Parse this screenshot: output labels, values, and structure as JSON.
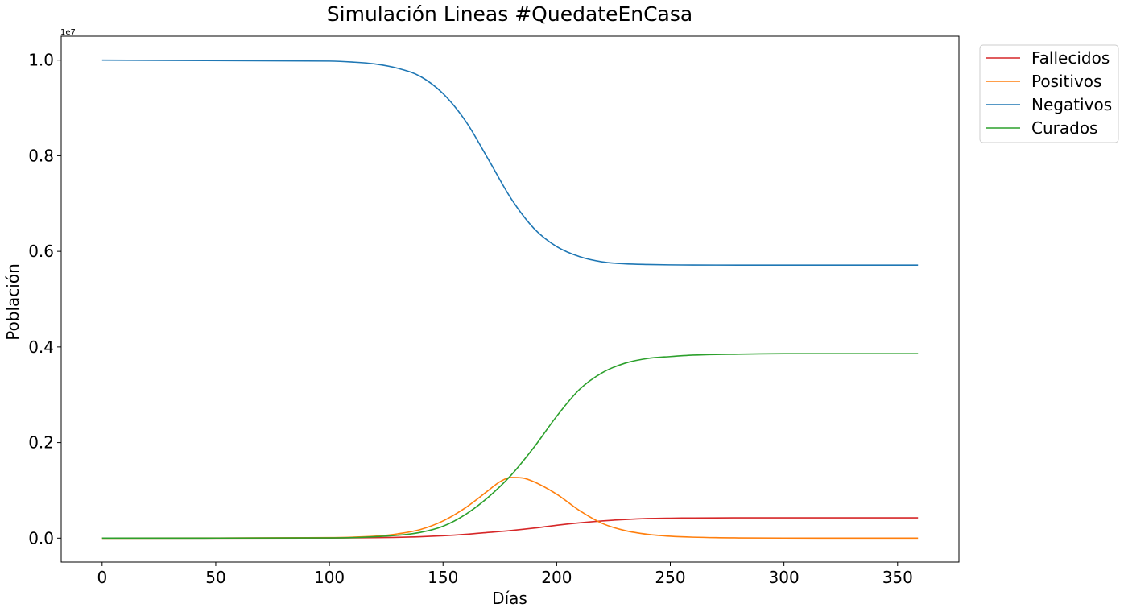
{
  "chart_data": {
    "type": "line",
    "title": "Simulación Lineas #QuedateEnCasa",
    "xlabel": "Días",
    "ylabel": "Población",
    "y_offset_label": "1e7",
    "xlim": [
      -18,
      377
    ],
    "ylim": [
      -0.05,
      1.05
    ],
    "x_ticks": [
      0,
      50,
      100,
      150,
      200,
      250,
      300,
      350
    ],
    "x_tick_labels": [
      "0",
      "50",
      "100",
      "150",
      "200",
      "250",
      "300",
      "350"
    ],
    "y_ticks": [
      0.0,
      0.2,
      0.4,
      0.6,
      0.8,
      1.0
    ],
    "y_tick_labels": [
      "0.0",
      "0.2",
      "0.4",
      "0.6",
      "0.8",
      "1.0"
    ],
    "grid": false,
    "legend_position": "outside-top-right",
    "series": [
      {
        "name": "Fallecidos",
        "color": "#d62728",
        "x": [
          0,
          100,
          120,
          140,
          150,
          160,
          170,
          180,
          190,
          200,
          210,
          220,
          230,
          240,
          250,
          260,
          280,
          300,
          359
        ],
        "y": [
          0,
          0.0003,
          0.001,
          0.003,
          0.005,
          0.008,
          0.012,
          0.016,
          0.021,
          0.027,
          0.032,
          0.036,
          0.039,
          0.041,
          0.0418,
          0.0422,
          0.0425,
          0.0426,
          0.0426
        ]
      },
      {
        "name": "Positivos",
        "color": "#ff7f0e",
        "x": [
          0,
          100,
          110,
          120,
          130,
          140,
          150,
          160,
          170,
          175,
          180,
          185,
          190,
          200,
          210,
          220,
          230,
          240,
          250,
          260,
          280,
          300,
          359
        ],
        "y": [
          0,
          0.001,
          0.002,
          0.004,
          0.009,
          0.018,
          0.036,
          0.064,
          0.1,
          0.118,
          0.127,
          0.126,
          0.118,
          0.092,
          0.058,
          0.031,
          0.016,
          0.008,
          0.004,
          0.002,
          0.0005,
          0.0001,
          0
        ]
      },
      {
        "name": "Negativos",
        "color": "#1f77b4",
        "x": [
          0,
          100,
          110,
          120,
          130,
          140,
          150,
          160,
          170,
          180,
          190,
          200,
          210,
          220,
          230,
          240,
          250,
          260,
          280,
          300,
          359
        ],
        "y": [
          1.0,
          0.998,
          0.996,
          0.992,
          0.983,
          0.966,
          0.93,
          0.872,
          0.792,
          0.71,
          0.648,
          0.61,
          0.589,
          0.578,
          0.574,
          0.5725,
          0.5718,
          0.5715,
          0.5713,
          0.5713,
          0.5713
        ]
      },
      {
        "name": "Curados",
        "color": "#2ca02c",
        "x": [
          0,
          100,
          110,
          120,
          130,
          140,
          150,
          160,
          170,
          180,
          190,
          200,
          210,
          220,
          230,
          240,
          250,
          260,
          280,
          300,
          359
        ],
        "y": [
          0,
          0.0005,
          0.001,
          0.003,
          0.006,
          0.012,
          0.025,
          0.05,
          0.086,
          0.132,
          0.19,
          0.255,
          0.311,
          0.346,
          0.366,
          0.376,
          0.38,
          0.383,
          0.385,
          0.386,
          0.386
        ]
      }
    ]
  }
}
